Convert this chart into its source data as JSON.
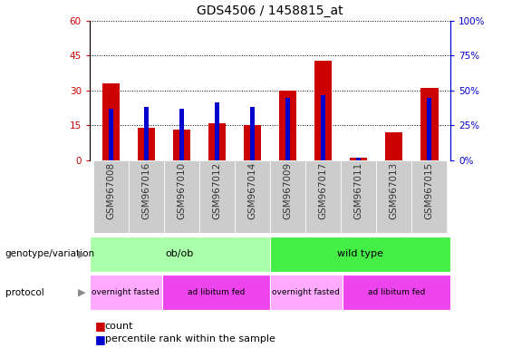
{
  "title": "GDS4506 / 1458815_at",
  "samples": [
    "GSM967008",
    "GSM967016",
    "GSM967010",
    "GSM967012",
    "GSM967014",
    "GSM967009",
    "GSM967017",
    "GSM967011",
    "GSM967013",
    "GSM967015"
  ],
  "count_values": [
    33,
    14,
    13,
    16,
    15,
    30,
    43,
    1,
    12,
    31
  ],
  "percentile_values": [
    22,
    23,
    22,
    25,
    23,
    27,
    28,
    1,
    0,
    27
  ],
  "left_ylim": [
    0,
    60
  ],
  "right_ylim": [
    0,
    100
  ],
  "left_yticks": [
    0,
    15,
    30,
    45,
    60
  ],
  "right_yticks": [
    0,
    25,
    50,
    75,
    100
  ],
  "right_yticklabels": [
    "0%",
    "25%",
    "50%",
    "75%",
    "100%"
  ],
  "bar_color": "#cc0000",
  "percentile_color": "#0000cc",
  "bar_width": 0.5,
  "percentile_bar_width": 0.12,
  "genotype_groups": [
    {
      "label": "ob/ob",
      "start": 0,
      "end": 5,
      "color": "#aaffaa"
    },
    {
      "label": "wild type",
      "start": 5,
      "end": 10,
      "color": "#44ee44"
    }
  ],
  "protocol_groups": [
    {
      "label": "overnight fasted",
      "start": 0,
      "end": 2,
      "color": "#ffaaff"
    },
    {
      "label": "ad libitum fed",
      "start": 2,
      "end": 5,
      "color": "#ee44ee"
    },
    {
      "label": "overnight fasted",
      "start": 5,
      "end": 7,
      "color": "#ffaaff"
    },
    {
      "label": "ad libitum fed",
      "start": 7,
      "end": 10,
      "color": "#ee44ee"
    }
  ],
  "xlabel_color": "#333333",
  "left_axis_color": "#cc0000",
  "right_axis_color": "#0000cc",
  "grid_color": "#000000",
  "background_color": "#ffffff",
  "sample_bg_color": "#cccccc",
  "legend_count_color": "#cc0000",
  "legend_percentile_color": "#0000cc",
  "title_fontsize": 10,
  "tick_fontsize": 7.5,
  "label_fontsize": 8,
  "legend_fontsize": 8
}
